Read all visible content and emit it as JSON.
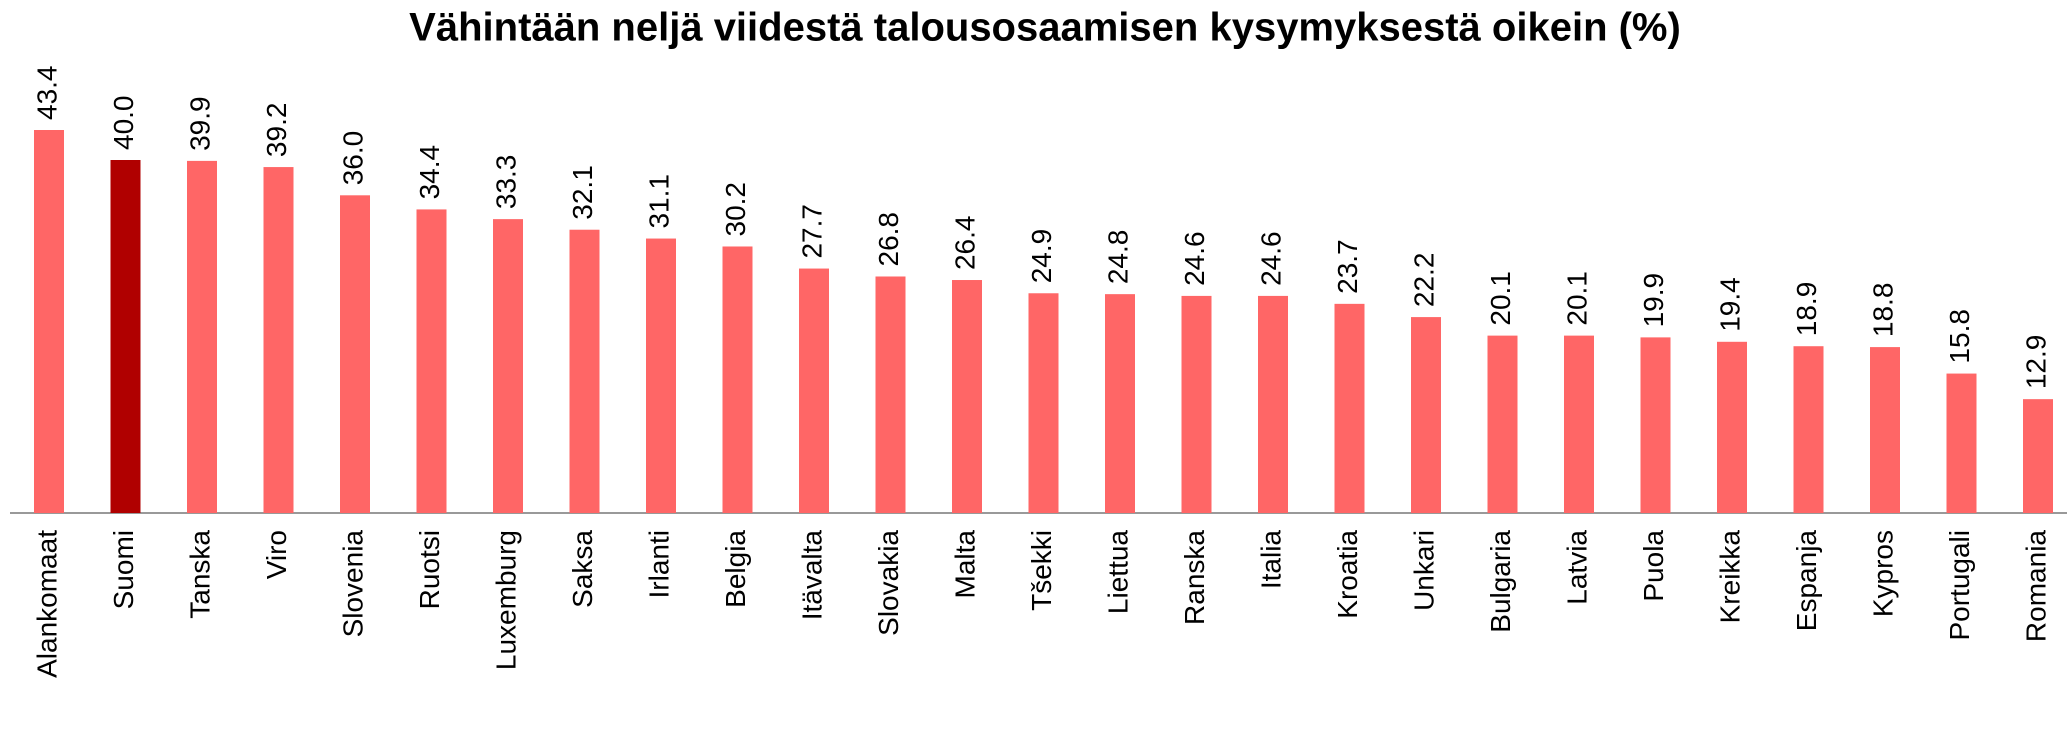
{
  "chart_data": {
    "type": "bar",
    "title": "Vähintään neljä viidestä talousosaamisen kysymyksestä oikein (%)",
    "categories": [
      "Alankomaat",
      "Suomi",
      "Tanska",
      "Viro",
      "Slovenia",
      "Ruotsi",
      "Luxemburg",
      "Saksa",
      "Irlanti",
      "Belgia",
      "Itävalta",
      "Slovakia",
      "Malta",
      "Tšekki",
      "Liettua",
      "Ranska",
      "Italia",
      "Kroatia",
      "Unkari",
      "Bulgaria",
      "Latvia",
      "Puola",
      "Kreikka",
      "Espanja",
      "Kypros",
      "Portugali",
      "Romania"
    ],
    "values": [
      43.4,
      40.0,
      39.9,
      39.2,
      36.0,
      34.4,
      33.3,
      32.1,
      31.1,
      30.2,
      27.7,
      26.8,
      26.4,
      24.9,
      24.8,
      24.6,
      24.6,
      23.7,
      22.2,
      20.1,
      20.1,
      19.9,
      19.4,
      18.9,
      18.8,
      15.8,
      12.9
    ],
    "value_labels": [
      "43.4",
      "40.0",
      "39.9",
      "39.2",
      "36.0",
      "34.4",
      "33.3",
      "32.1",
      "31.1",
      "30.2",
      "27.7",
      "26.8",
      "26.4",
      "24.9",
      "24.8",
      "24.6",
      "24.6",
      "23.7",
      "22.2",
      "20.1",
      "20.1",
      "19.9",
      "19.4",
      "18.9",
      "18.8",
      "15.8",
      "12.9"
    ],
    "colors": [
      "#ff6666",
      "#b00000",
      "#ff6666",
      "#ff6666",
      "#ff6666",
      "#ff6666",
      "#ff6666",
      "#ff6666",
      "#ff6666",
      "#ff6666",
      "#ff6666",
      "#ff6666",
      "#ff6666",
      "#ff6666",
      "#ff6666",
      "#ff6666",
      "#ff6666",
      "#ff6666",
      "#ff6666",
      "#ff6666",
      "#ff6666",
      "#ff6666",
      "#ff6666",
      "#ff6666",
      "#ff6666",
      "#ff6666",
      "#ff6666"
    ]
  }
}
